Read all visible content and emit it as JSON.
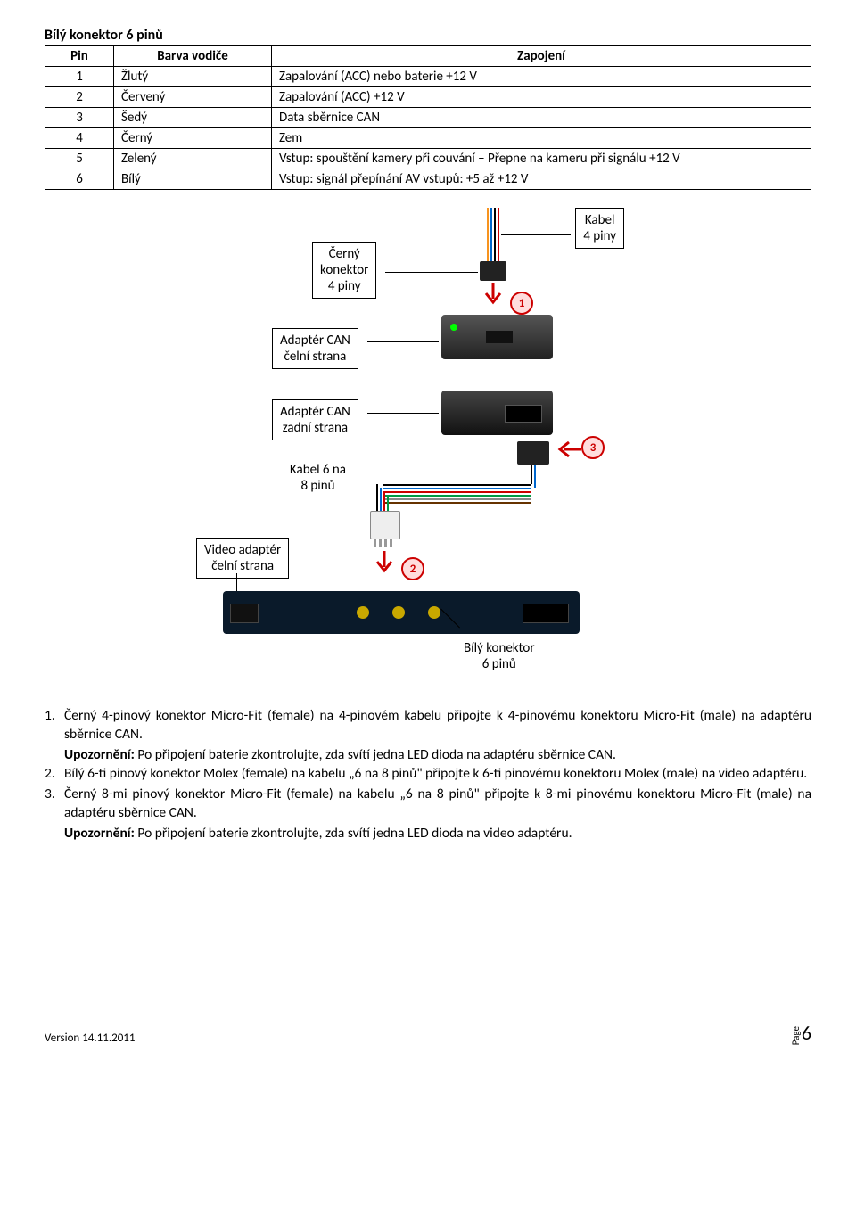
{
  "section_title": "Bílý konektor 6 pinů",
  "table": {
    "headers": [
      "Pin",
      "Barva vodiče",
      "Zapojení"
    ],
    "rows": [
      [
        "1",
        "Žlutý",
        "Zapalování (ACC) nebo baterie +12 V"
      ],
      [
        "2",
        "Červený",
        "Zapalování (ACC) +12 V"
      ],
      [
        "3",
        "Šedý",
        "Data sběrnice CAN"
      ],
      [
        "4",
        "Černý",
        "Zem"
      ],
      [
        "5",
        "Zelený",
        "Vstup: spouštění kamery při couvání – Přepne na kameru při signálu +12 V"
      ],
      [
        "6",
        "Bílý",
        "Vstup: signál přepínání AV vstupů: +5 až +12 V"
      ]
    ]
  },
  "diagram": {
    "labels": {
      "cerny_konektor": "Černý\nkonektor\n4 piny",
      "kabel_4piny": "Kabel\n4 piny",
      "adapter_celni": "Adaptér CAN\nčelní strana",
      "adapter_zadni": "Adaptér CAN\nzadní strana",
      "kabel_6na8": "Kabel 6 na\n8 pinů",
      "video_celni": "Video adaptér\nčelní strana",
      "bily_konektor": "Bílý konektor\n6 pinů"
    },
    "badges": [
      "1",
      "2",
      "3"
    ]
  },
  "instructions": {
    "items": [
      {
        "num": "1.",
        "text": "Černý 4-pinový konektor Micro-Fit (female) na 4-pinovém kabelu připojte k 4-pinovému konektoru Micro-Fit (male) na adaptéru sběrnice CAN."
      },
      {
        "num": "2.",
        "text": "Bílý 6-ti pinový konektor Molex (female) na kabelu „6 na 8 pinů\" připojte k 6-ti pinovému konektoru Molex (male) na video adaptéru."
      },
      {
        "num": "3.",
        "text": "Černý 8-mi pinový konektor Micro-Fit (female) na kabelu „6 na 8 pinů\" připojte k 8-mi pinovému konektoru Micro-Fit (male) na adaptéru sběrnice CAN."
      }
    ],
    "warnings": {
      "label": "Upozornění:",
      "w1": " Po připojení baterie zkontrolujte, zda svítí jedna LED dioda na adaptéru sběrnice CAN.",
      "w2": " Po připojení baterie zkontrolujte, zda svítí jedna LED dioda na video adaptéru."
    }
  },
  "footer": {
    "version": "Version 14.11.2011",
    "page_label": "Page",
    "page_num": "6"
  },
  "colors": {
    "wire_orange": "#f7931e",
    "wire_blue": "#0066cc",
    "wire_black": "#000000",
    "wire_red": "#cc0000",
    "wire_green": "#009944",
    "wire_white": "#cccccc",
    "wire_grey": "#888888",
    "wire_brown": "#663300"
  }
}
